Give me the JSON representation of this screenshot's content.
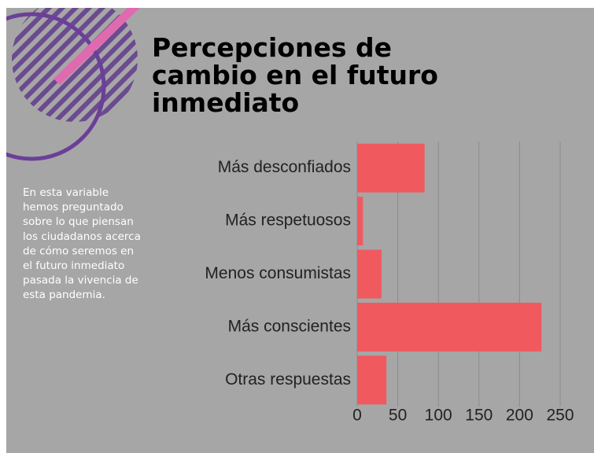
{
  "chart_data": {
    "type": "bar",
    "orientation": "horizontal",
    "title_lines": [
      "Percepciones de",
      "cambio en el futuro",
      "inmediato"
    ],
    "description_lines": [
      "En esta variable",
      "hemos preguntado",
      "sobre lo que piensan",
      "los ciudadanos acerca",
      "de cómo seremos en",
      "el futuro inmediato",
      "pasada la vivencia de",
      "esta pandemia."
    ],
    "categories": [
      "Más desconfiados",
      "Más respetuosos",
      "Menos consumistas",
      "Más conscientes",
      "Otras respuestas"
    ],
    "values": [
      83,
      7,
      30,
      227,
      36
    ],
    "color": "#f05a5f",
    "xlim": [
      0,
      250
    ],
    "xticks": [
      0,
      50,
      100,
      150,
      200,
      250
    ],
    "grid": true
  }
}
